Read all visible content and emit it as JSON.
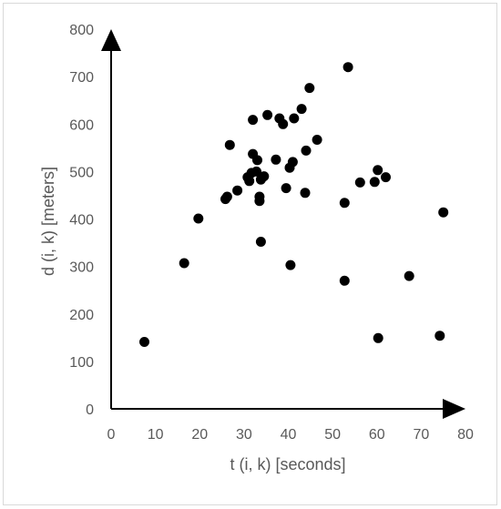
{
  "chart_data": {
    "type": "scatter",
    "title": "",
    "xlabel": "t (i, k) [seconds]",
    "ylabel": "d (i, k) [meters]",
    "xlim": [
      0,
      80
    ],
    "ylim": [
      0,
      800
    ],
    "x_ticks": [
      "0",
      "10",
      "20",
      "30",
      "40",
      "50",
      "60",
      "70",
      "80"
    ],
    "y_ticks": [
      "0",
      "100",
      "200",
      "300",
      "400",
      "500",
      "600",
      "700",
      "800"
    ],
    "grid": false,
    "legend": "none",
    "marker_color": "#000000",
    "axis_color": "#000000",
    "series": [
      {
        "points": [
          [
            7.5,
            141
          ],
          [
            16.5,
            307
          ],
          [
            19.7,
            401
          ],
          [
            25.8,
            442
          ],
          [
            26.2,
            447
          ],
          [
            26.8,
            556
          ],
          [
            28.5,
            460
          ],
          [
            30.8,
            488
          ],
          [
            31.2,
            480
          ],
          [
            31.7,
            497
          ],
          [
            32.0,
            537
          ],
          [
            32.0,
            609
          ],
          [
            32.8,
            500
          ],
          [
            33.0,
            524
          ],
          [
            33.5,
            438
          ],
          [
            33.5,
            447
          ],
          [
            33.8,
            352
          ],
          [
            33.8,
            483
          ],
          [
            34.5,
            490
          ],
          [
            35.3,
            619
          ],
          [
            37.2,
            525
          ],
          [
            38.0,
            612
          ],
          [
            38.8,
            600
          ],
          [
            39.5,
            465
          ],
          [
            40.3,
            508
          ],
          [
            40.5,
            303
          ],
          [
            41.0,
            520
          ],
          [
            41.3,
            612
          ],
          [
            43.0,
            632
          ],
          [
            43.8,
            455
          ],
          [
            44.0,
            544
          ],
          [
            44.8,
            676
          ],
          [
            46.5,
            567
          ],
          [
            52.7,
            434
          ],
          [
            52.7,
            270
          ],
          [
            53.5,
            720
          ],
          [
            56.2,
            477
          ],
          [
            59.5,
            478
          ],
          [
            60.2,
            503
          ],
          [
            60.3,
            149
          ],
          [
            62.0,
            488
          ],
          [
            67.3,
            280
          ],
          [
            74.2,
            154
          ],
          [
            75.0,
            414
          ]
        ]
      }
    ]
  }
}
